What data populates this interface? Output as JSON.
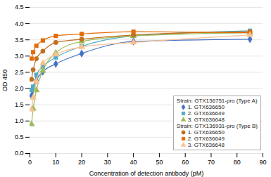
{
  "chart_data": {
    "type": "line",
    "xlabel": "Concentration of detection antibody (pM)",
    "ylabel": "OD 450",
    "xlim": [
      0,
      90
    ],
    "ylim": [
      0,
      4.5
    ],
    "xticks": [
      0,
      10,
      20,
      30,
      40,
      50,
      60,
      70,
      80,
      90
    ],
    "yticks": [
      {
        "value": 0,
        "label": "0.0"
      },
      0.5,
      {
        "value": 1.0,
        "label": "1.0"
      },
      1.5,
      {
        "value": 2.0,
        "label": "2.0"
      },
      2.5,
      {
        "value": 3.0,
        "label": "3.0"
      },
      3.5,
      {
        "value": 4.0,
        "label": "4.0"
      },
      4.5
    ],
    "grid": "y",
    "legend": "lower right",
    "x": [
      0.625,
      1.25,
      2.5,
      5,
      10,
      20,
      40,
      85
    ],
    "series": [
      {
        "name": "1. GTX636650",
        "group": "Strain: GTX136751-pro (Type A)",
        "color": "#4472c4",
        "marker": "diamond",
        "values": [
          1.78,
          1.95,
          2.25,
          2.52,
          2.76,
          3.08,
          3.45,
          3.52
        ]
      },
      {
        "name": "2. GTX636649",
        "group": "Strain: GTX136751-pro (Type A)",
        "color": "#4bacc6",
        "marker": "square",
        "values": [
          1.96,
          2.06,
          2.42,
          2.68,
          2.96,
          3.3,
          3.62,
          3.78
        ]
      },
      {
        "name": "3. GTX636648",
        "group": "Strain: GTX136751-pro (Type A)",
        "color": "#9bbb59",
        "marker": "triangle",
        "values": [
          0.9,
          1.38,
          1.95,
          2.55,
          3.1,
          3.45,
          3.62,
          3.72
        ]
      },
      {
        "name": "1. GTX636650",
        "group": "Strain: GTX136931-pro (Type B)",
        "color": "#c07020",
        "marker": "circle",
        "values": [
          2.28,
          2.58,
          2.92,
          3.15,
          3.42,
          3.52,
          3.65,
          3.75
        ]
      },
      {
        "name": "2. GTX636649",
        "group": "Strain: GTX136931-pro (Type B)",
        "color": "#e36c09",
        "marker": "square",
        "values": [
          2.92,
          3.12,
          3.32,
          3.48,
          3.62,
          3.68,
          3.75,
          3.72
        ]
      },
      {
        "name": "3. GTX636648",
        "group": "Strain: GTX136931-pro (Type B)",
        "color": "#fac08f",
        "marker": "triangle",
        "values": [
          1.35,
          1.72,
          2.22,
          2.78,
          3.05,
          3.28,
          3.42,
          3.65
        ]
      }
    ]
  }
}
